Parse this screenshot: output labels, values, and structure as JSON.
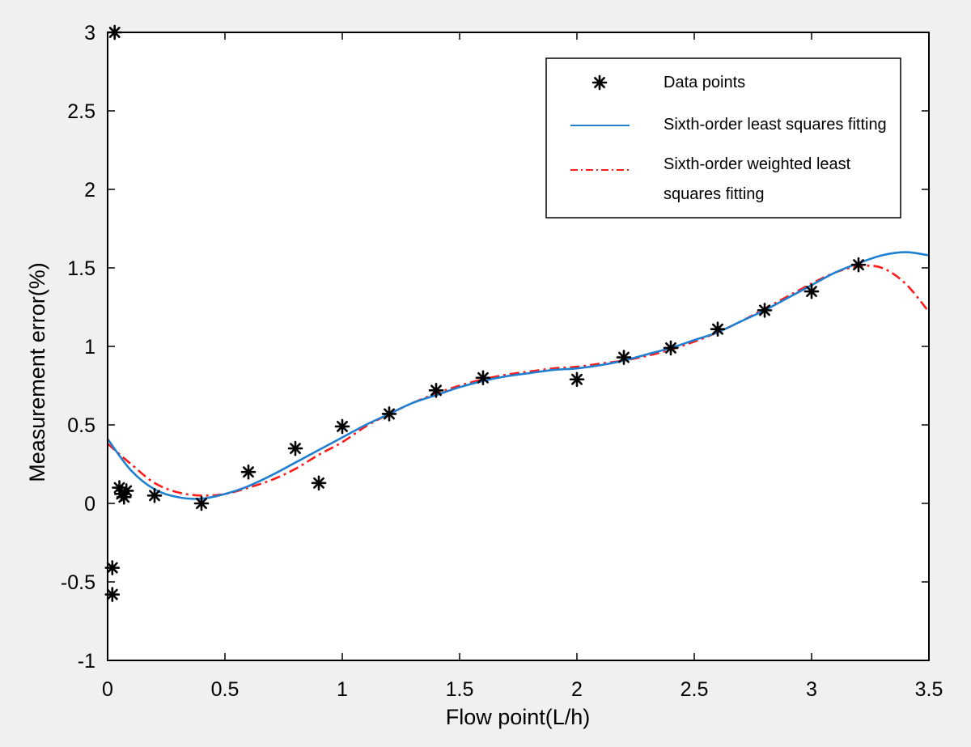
{
  "chart_data": {
    "type": "line",
    "xlabel": "Flow point(L/h)",
    "ylabel": "Measurement error(%)",
    "xlim": [
      0,
      3.5
    ],
    "ylim": [
      -1,
      3
    ],
    "x_ticks": [
      "0",
      "0.5",
      "1",
      "1.5",
      "2",
      "2.5",
      "3",
      "3.5"
    ],
    "y_ticks": [
      "-1",
      "-0.5",
      "0",
      "0.5",
      "1",
      "1.5",
      "2",
      "2.5",
      "3"
    ],
    "x_tick_values": [
      0,
      0.5,
      1,
      1.5,
      2,
      2.5,
      3,
      3.5
    ],
    "y_tick_values": [
      -1,
      -0.5,
      0,
      0.5,
      1,
      1.5,
      2,
      2.5,
      3
    ],
    "grid": false,
    "legend_position": "top-right",
    "legend": {
      "data_points": "Data points",
      "ls_fit": "Sixth-order least squares fitting",
      "wls_fit_line1": "Sixth-order weighted least",
      "wls_fit_line2": "squares fitting"
    },
    "colors": {
      "data_points": "#000000",
      "ls_fit": "#1f7fd0",
      "wls_fit": "#ff1a1a",
      "background": "#f0f0f0",
      "plot_area": "#ffffff"
    },
    "data_points": {
      "marker": "asterisk",
      "x": [
        0.03,
        0.02,
        0.02,
        0.05,
        0.06,
        0.07,
        0.08,
        0.2,
        0.4,
        0.6,
        0.8,
        0.9,
        1.0,
        1.2,
        1.4,
        1.6,
        2.0,
        2.2,
        2.4,
        2.6,
        2.8,
        3.0,
        3.2
      ],
      "y": [
        3.0,
        -0.41,
        -0.58,
        0.1,
        0.06,
        0.04,
        0.08,
        0.05,
        0.0,
        0.2,
        0.35,
        0.13,
        0.49,
        0.57,
        0.72,
        0.8,
        0.79,
        0.93,
        0.99,
        1.11,
        1.23,
        1.35,
        1.52
      ]
    },
    "series": [
      {
        "name": "Sixth-order least squares fitting",
        "style": "solid",
        "x": [
          0,
          0.1,
          0.2,
          0.3,
          0.4,
          0.5,
          0.6,
          0.7,
          0.8,
          0.9,
          1.0,
          1.1,
          1.2,
          1.3,
          1.4,
          1.5,
          1.6,
          1.7,
          1.8,
          1.9,
          2.0,
          2.1,
          2.2,
          2.3,
          2.4,
          2.5,
          2.6,
          2.7,
          2.8,
          2.9,
          3.0,
          3.1,
          3.2,
          3.3,
          3.4,
          3.5
        ],
        "y": [
          0.41,
          0.21,
          0.09,
          0.04,
          0.03,
          0.06,
          0.11,
          0.18,
          0.26,
          0.34,
          0.42,
          0.5,
          0.57,
          0.64,
          0.69,
          0.74,
          0.78,
          0.81,
          0.83,
          0.85,
          0.86,
          0.88,
          0.91,
          0.95,
          0.99,
          1.04,
          1.09,
          1.16,
          1.23,
          1.31,
          1.39,
          1.47,
          1.53,
          1.58,
          1.6,
          1.58
        ]
      },
      {
        "name": "Sixth-order weighted least squares fitting",
        "style": "dashdot",
        "x": [
          0,
          0.1,
          0.2,
          0.3,
          0.4,
          0.5,
          0.6,
          0.7,
          0.8,
          0.9,
          1.0,
          1.1,
          1.2,
          1.3,
          1.4,
          1.5,
          1.6,
          1.7,
          1.8,
          1.9,
          2.0,
          2.1,
          2.2,
          2.3,
          2.4,
          2.5,
          2.6,
          2.7,
          2.8,
          2.9,
          3.0,
          3.1,
          3.2,
          3.3,
          3.4,
          3.5
        ],
        "y": [
          0.38,
          0.25,
          0.13,
          0.07,
          0.05,
          0.06,
          0.1,
          0.15,
          0.22,
          0.31,
          0.39,
          0.49,
          0.57,
          0.64,
          0.7,
          0.75,
          0.79,
          0.82,
          0.84,
          0.86,
          0.87,
          0.89,
          0.91,
          0.94,
          0.98,
          1.03,
          1.09,
          1.16,
          1.24,
          1.32,
          1.4,
          1.47,
          1.51,
          1.5,
          1.4,
          1.22
        ]
      }
    ]
  }
}
